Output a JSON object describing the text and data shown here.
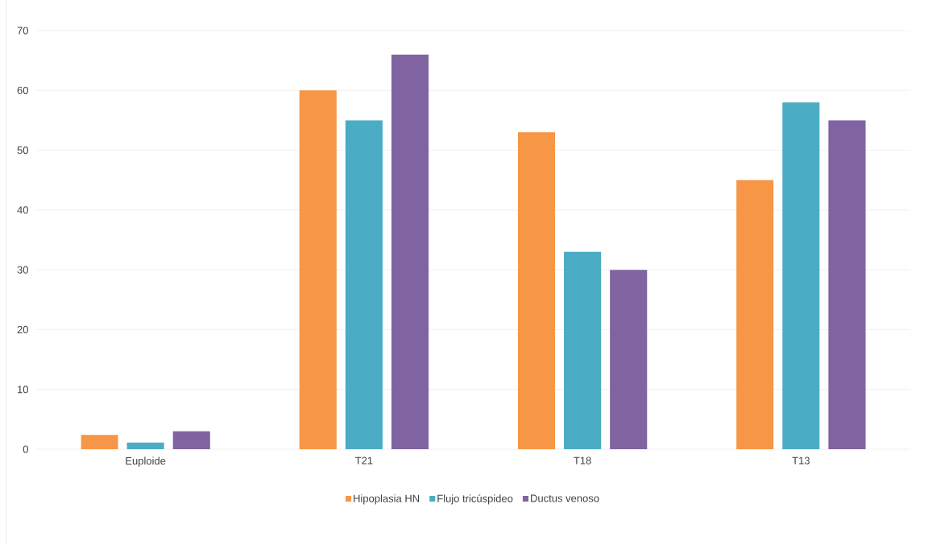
{
  "chart_data": {
    "type": "bar",
    "categories": [
      "Euploide",
      "T21",
      "T18",
      "T13"
    ],
    "series": [
      {
        "name": "Hipoplasia HN",
        "color": "#f79646",
        "values": [
          2.4,
          60,
          53,
          45
        ]
      },
      {
        "name": "Flujo tricúspideo",
        "color": "#4bacc6",
        "values": [
          1.1,
          55,
          33,
          58
        ]
      },
      {
        "name": "Ductus venoso",
        "color": "#8064a2",
        "values": [
          3,
          66,
          30,
          55
        ]
      }
    ],
    "ylim": [
      0,
      70
    ],
    "yticks": [
      0,
      10,
      20,
      30,
      40,
      50,
      60,
      70
    ],
    "grid": "y",
    "legend": "bottom"
  }
}
